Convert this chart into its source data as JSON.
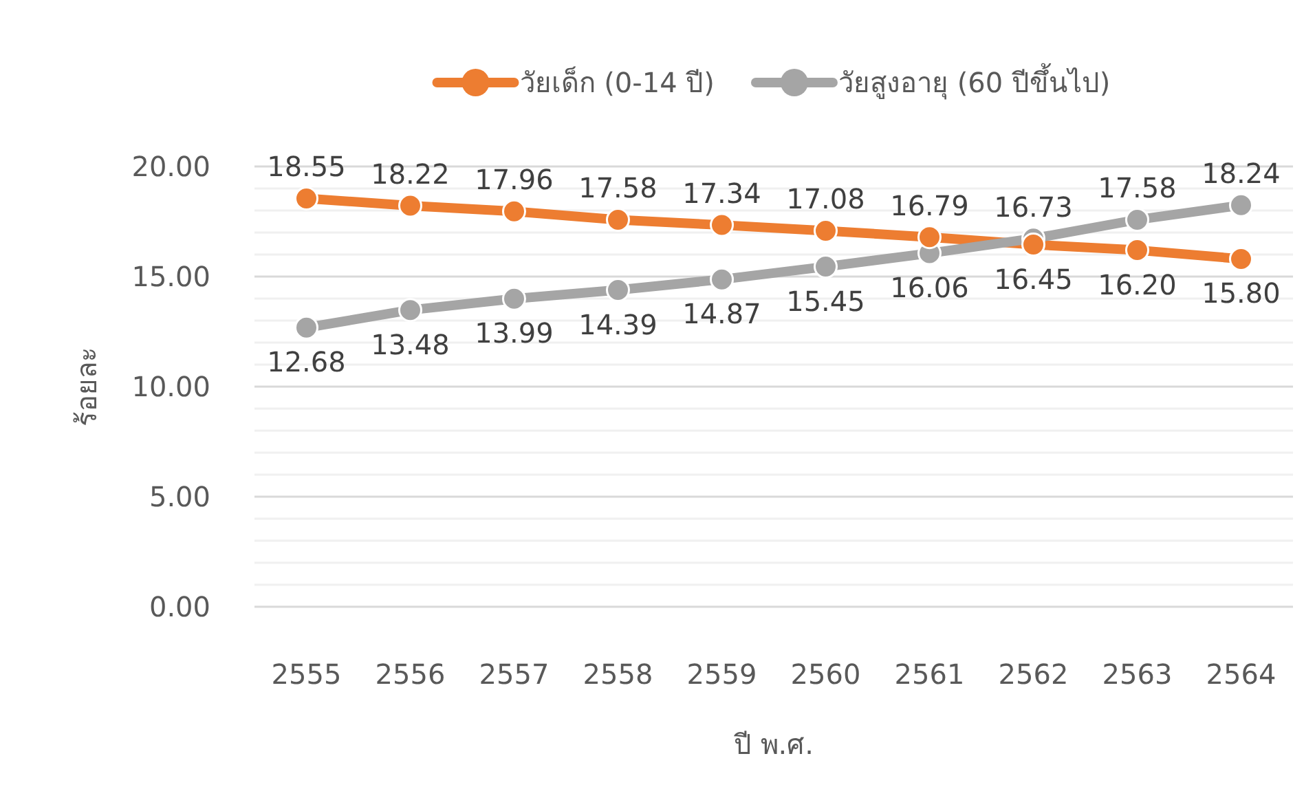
{
  "chart_data": {
    "type": "line",
    "xlabel": "ปี พ.ศ.",
    "ylabel": "ร้อยละ",
    "categories": [
      "2555",
      "2556",
      "2557",
      "2558",
      "2559",
      "2560",
      "2561",
      "2562",
      "2563",
      "2564"
    ],
    "series": [
      {
        "name": "วัยเด็ก (0-14 ปี)",
        "color": "#ed7d31",
        "values": [
          18.55,
          18.22,
          17.96,
          17.58,
          17.34,
          17.08,
          16.79,
          16.45,
          16.2,
          15.8
        ],
        "value_labels": [
          "18.55",
          "18.22",
          "17.96",
          "17.58",
          "17.34",
          "17.08",
          "16.79",
          "16.45",
          "16.20",
          "15.80"
        ]
      },
      {
        "name": "วัยสูงอายุ (60 ปีขึ้นไป)",
        "color": "#a5a5a5",
        "values": [
          12.68,
          13.48,
          13.99,
          14.39,
          14.87,
          15.45,
          16.06,
          16.73,
          17.58,
          18.24
        ],
        "value_labels": [
          "12.68",
          "13.48",
          "13.99",
          "14.39",
          "14.87",
          "15.45",
          "16.06",
          "16.73",
          "17.58",
          "18.24"
        ]
      }
    ],
    "ylim": [
      0,
      20
    ],
    "yticks": [
      {
        "value": 0,
        "label": "0.00"
      },
      {
        "value": 1,
        "label": null
      },
      {
        "value": 2,
        "label": null
      },
      {
        "value": 3,
        "label": null
      },
      {
        "value": 4,
        "label": null
      },
      {
        "value": 5,
        "label": "5.00"
      },
      {
        "value": 6,
        "label": null
      },
      {
        "value": 7,
        "label": null
      },
      {
        "value": 8,
        "label": null
      },
      {
        "value": 9,
        "label": null
      },
      {
        "value": 10,
        "label": "10.00"
      },
      {
        "value": 11,
        "label": null
      },
      {
        "value": 12,
        "label": null
      },
      {
        "value": 13,
        "label": null
      },
      {
        "value": 14,
        "label": null
      },
      {
        "value": 15,
        "label": "15.00"
      },
      {
        "value": 16,
        "label": null
      },
      {
        "value": 17,
        "label": null
      },
      {
        "value": 18,
        "label": null
      },
      {
        "value": 19,
        "label": null
      },
      {
        "value": 20,
        "label": "20.00"
      }
    ],
    "grid": "y",
    "legend": "top",
    "marker": "circle",
    "line_style": "solid"
  }
}
